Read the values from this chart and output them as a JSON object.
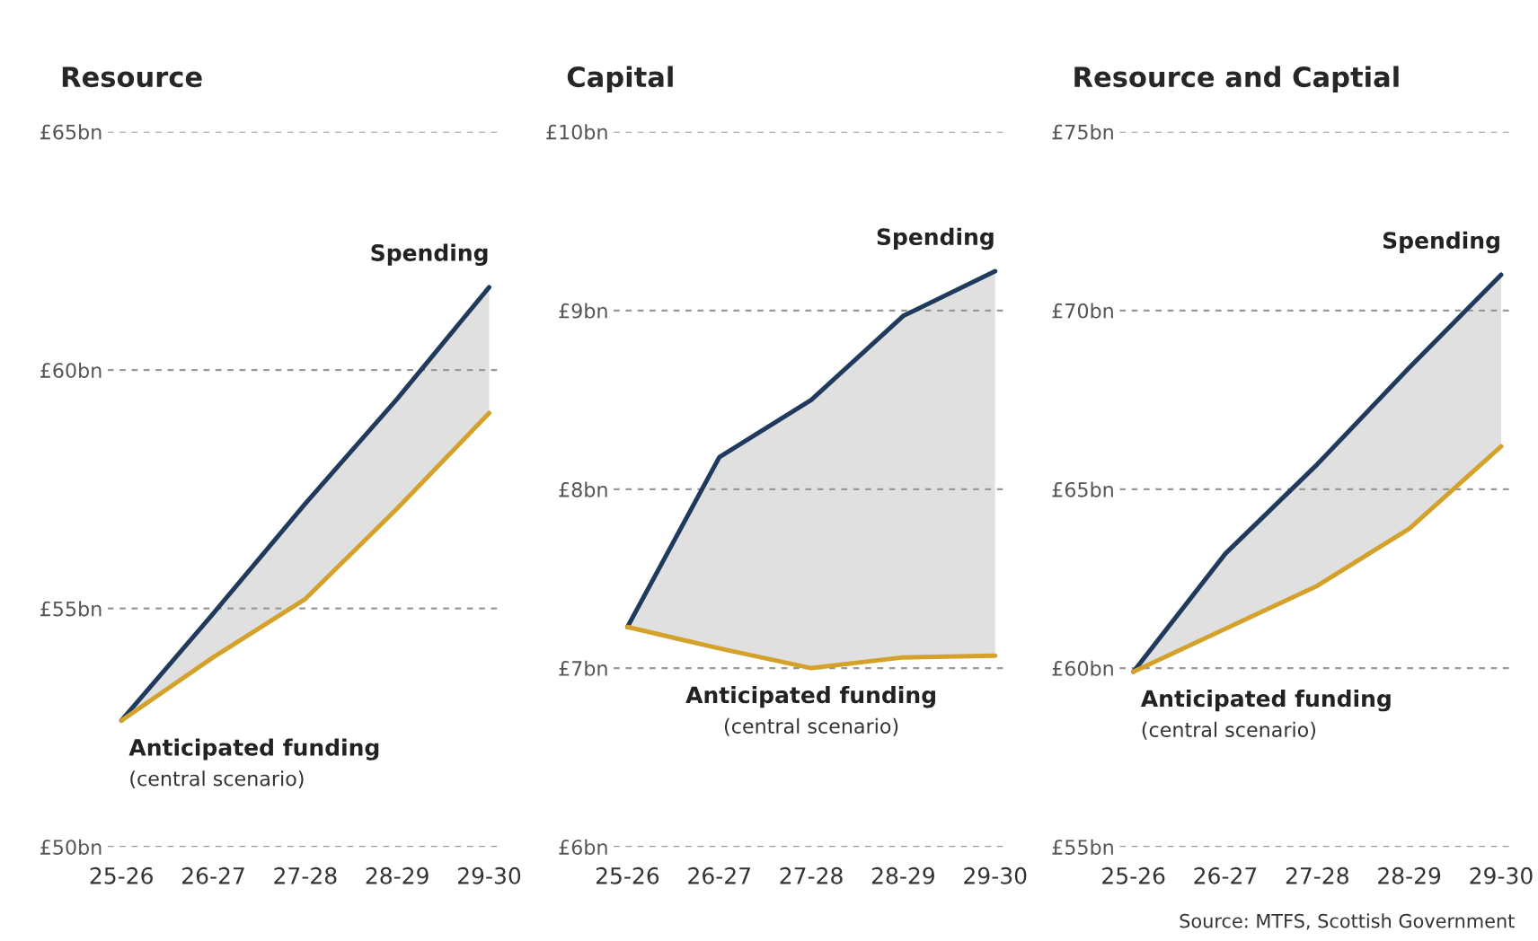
{
  "chart_data": [
    {
      "type": "line",
      "title": "Resource",
      "categories": [
        "25-26",
        "26-27",
        "27-28",
        "28-29",
        "29-30"
      ],
      "series": [
        {
          "name": "Spending",
          "color": "#1f3a5c",
          "values": [
            52.65,
            54.9,
            57.2,
            59.4,
            61.74
          ]
        },
        {
          "name": "Anticipated funding",
          "color": "#d4a22a",
          "values": [
            52.65,
            53.98,
            55.2,
            57.1,
            59.1
          ]
        }
      ],
      "ylim": [
        50,
        65
      ],
      "yticks": [
        {
          "value": 50,
          "label": "£50bn"
        },
        {
          "value": 55,
          "label": "£55bn"
        },
        {
          "value": 60,
          "label": "£60bn"
        },
        {
          "value": 65,
          "label": "£65bn"
        }
      ],
      "grid": "y",
      "legend": false,
      "annotations": [
        "(central scenario)"
      ]
    },
    {
      "type": "line",
      "title": "Capital",
      "categories": [
        "25-26",
        "26-27",
        "27-28",
        "28-29",
        "29-30"
      ],
      "series": [
        {
          "name": "Spending",
          "color": "#1f3a5c",
          "values": [
            7.23,
            8.18,
            8.5,
            8.97,
            9.22
          ]
        },
        {
          "name": "Anticipated funding",
          "color": "#d4a22a",
          "values": [
            7.23,
            7.11,
            7.0,
            7.06,
            7.07
          ]
        }
      ],
      "ylim": [
        6,
        10
      ],
      "yticks": [
        {
          "value": 6,
          "label": "£6bn"
        },
        {
          "value": 7,
          "label": "£7bn"
        },
        {
          "value": 8,
          "label": "£8bn"
        },
        {
          "value": 9,
          "label": "£9bn"
        },
        {
          "value": 10,
          "label": "£10bn"
        }
      ],
      "grid": "y",
      "legend": false,
      "annotations": [
        "(central scenario)"
      ]
    },
    {
      "type": "line",
      "title": "Resource and Captial",
      "categories": [
        "25-26",
        "26-27",
        "27-28",
        "28-29",
        "29-30"
      ],
      "series": [
        {
          "name": "Spending",
          "color": "#1f3a5c",
          "values": [
            59.9,
            63.2,
            65.7,
            68.4,
            71.0
          ]
        },
        {
          "name": "Anticipated funding",
          "color": "#d4a22a",
          "values": [
            59.9,
            61.1,
            62.3,
            63.9,
            66.2
          ]
        }
      ],
      "ylim": [
        55,
        75
      ],
      "yticks": [
        {
          "value": 55,
          "label": "£55bn"
        },
        {
          "value": 60,
          "label": "£60bn"
        },
        {
          "value": 65,
          "label": "£65bn"
        },
        {
          "value": 70,
          "label": "£70bn"
        },
        {
          "value": 75,
          "label": "£75bn"
        }
      ],
      "grid": "y",
      "legend": false,
      "annotations": [
        "(central scenario)",
        "Source: MTFS, Scottish Government"
      ]
    }
  ]
}
